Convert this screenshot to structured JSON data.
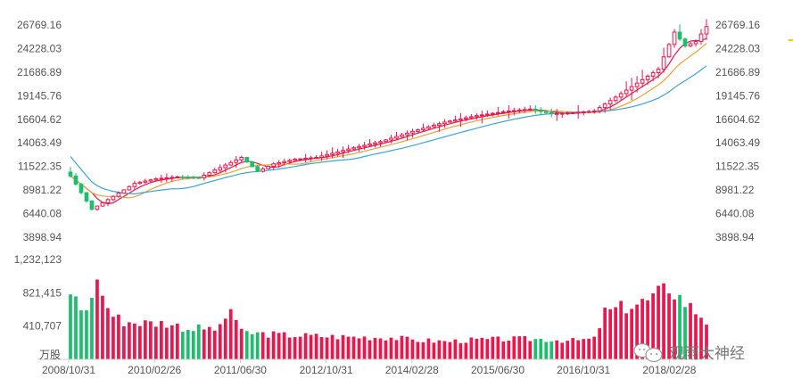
{
  "chart_data": [
    {
      "type": "candlestick",
      "panel": "price",
      "y_ticks": [
        "26769.16",
        "24228.03",
        "21686.89",
        "19145.76",
        "16604.62",
        "14063.49",
        "11522.35",
        "8981.22",
        "6440.08",
        "3898.94"
      ],
      "ylim": [
        3898.94,
        26769.16
      ],
      "x_ticks": [
        "2008/10/31",
        "2010/02/26",
        "2011/06/30",
        "2012/10/31",
        "2014/02/28",
        "2015/06/30",
        "2016/10/31",
        "2018/02/28"
      ],
      "x_range": [
        "2008/10/31",
        "2018/11/30"
      ],
      "periods": 120,
      "up_color": "#e8174d",
      "down_color": "#1bbf6d",
      "ma_colors": [
        "#e8174d",
        "#e8a13a",
        "#3aa6d6"
      ],
      "close_anchors": [
        [
          0,
          10500
        ],
        [
          4,
          6900
        ],
        [
          8,
          8300
        ],
        [
          12,
          9700
        ],
        [
          16,
          10200
        ],
        [
          20,
          10400
        ],
        [
          24,
          10300
        ],
        [
          28,
          11400
        ],
        [
          32,
          12500
        ],
        [
          35,
          11000
        ],
        [
          38,
          11800
        ],
        [
          42,
          12300
        ],
        [
          46,
          12500
        ],
        [
          52,
          13400
        ],
        [
          58,
          14200
        ],
        [
          64,
          15300
        ],
        [
          70,
          16300
        ],
        [
          76,
          17000
        ],
        [
          82,
          17500
        ],
        [
          86,
          17700
        ],
        [
          90,
          17200
        ],
        [
          94,
          17300
        ],
        [
          98,
          17500
        ],
        [
          102,
          19000
        ],
        [
          106,
          20500
        ],
        [
          110,
          22000
        ],
        [
          113,
          26000
        ],
        [
          115,
          24500
        ],
        [
          117,
          25000
        ],
        [
          119,
          26600
        ]
      ],
      "annotation": "观雨大神经"
    },
    {
      "type": "bar",
      "panel": "volume",
      "unit": "万股",
      "y_ticks": [
        "1,232,123",
        "821,415",
        "410,707"
      ],
      "ylim": [
        0,
        1232123
      ],
      "vol_anchors": [
        [
          0,
          850000
        ],
        [
          2,
          620000
        ],
        [
          4,
          710000
        ],
        [
          5,
          1080000
        ],
        [
          6,
          770000
        ],
        [
          8,
          540000
        ],
        [
          10,
          470000
        ],
        [
          14,
          450000
        ],
        [
          18,
          450000
        ],
        [
          22,
          380000
        ],
        [
          26,
          380000
        ],
        [
          28,
          380000
        ],
        [
          30,
          640000
        ],
        [
          32,
          330000
        ],
        [
          40,
          300000
        ],
        [
          50,
          280000
        ],
        [
          60,
          270000
        ],
        [
          64,
          240000
        ],
        [
          70,
          220000
        ],
        [
          76,
          240000
        ],
        [
          82,
          250000
        ],
        [
          88,
          250000
        ],
        [
          94,
          230000
        ],
        [
          96,
          240000
        ],
        [
          98,
          250000
        ],
        [
          100,
          580000
        ],
        [
          104,
          650000
        ],
        [
          108,
          720000
        ],
        [
          111,
          850000
        ],
        [
          112,
          900000
        ],
        [
          115,
          700000
        ],
        [
          118,
          540000
        ],
        [
          119,
          470000
        ]
      ]
    }
  ]
}
